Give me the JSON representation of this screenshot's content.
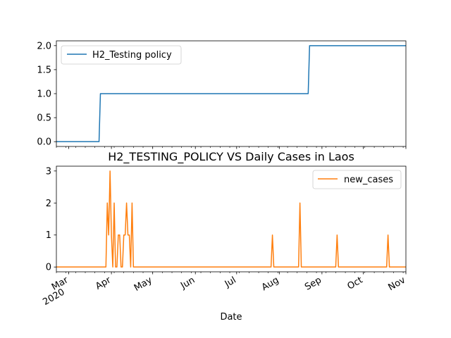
{
  "chart_data": [
    {
      "type": "line",
      "title": "",
      "xlabel": "",
      "ylabel": "",
      "ylim": [
        -0.1,
        2.1
      ],
      "yticks": [
        0.0,
        0.5,
        1.0,
        1.5,
        2.0
      ],
      "ytick_labels": [
        "0.0",
        "0.5",
        "1.0",
        "1.5",
        "2.0"
      ],
      "grid": false,
      "legend_position": "upper-left",
      "series": [
        {
          "name": "H2_Testing policy",
          "color": "#1f77b4",
          "points": [
            [
              "2020-02-21",
              0
            ],
            [
              "2020-03-23",
              0
            ],
            [
              "2020-03-24",
              1
            ],
            [
              "2020-08-22",
              1
            ],
            [
              "2020-08-23",
              2
            ],
            [
              "2020-11-01",
              2
            ]
          ]
        }
      ]
    },
    {
      "type": "line",
      "title": "H2_TESTING_POLICY VS Daily Cases in Laos",
      "xlabel": "Date",
      "ylabel": "",
      "ylim": [
        -0.15,
        3.15
      ],
      "yticks": [
        0,
        1,
        2,
        3
      ],
      "ytick_labels": [
        "0",
        "1",
        "2",
        "3"
      ],
      "grid": false,
      "legend_position": "upper-right",
      "xticks": [
        {
          "date": "2020-03-01",
          "label": "Mar",
          "sub": "2020"
        },
        {
          "date": "2020-04-01",
          "label": "Apr",
          "sub": ""
        },
        {
          "date": "2020-05-01",
          "label": "May",
          "sub": ""
        },
        {
          "date": "2020-06-01",
          "label": "Jun",
          "sub": ""
        },
        {
          "date": "2020-07-01",
          "label": "Jul",
          "sub": ""
        },
        {
          "date": "2020-08-01",
          "label": "Aug",
          "sub": ""
        },
        {
          "date": "2020-09-01",
          "label": "Sep",
          "sub": ""
        },
        {
          "date": "2020-10-01",
          "label": "Oct",
          "sub": ""
        },
        {
          "date": "2020-11-01",
          "label": "Nov",
          "sub": ""
        }
      ],
      "series": [
        {
          "name": "new_cases",
          "color": "#ff7f0e",
          "points": [
            [
              "2020-02-21",
              0
            ],
            [
              "2020-03-28",
              0
            ],
            [
              "2020-03-29",
              2
            ],
            [
              "2020-03-30",
              1
            ],
            [
              "2020-03-31",
              3
            ],
            [
              "2020-04-01",
              1
            ],
            [
              "2020-04-02",
              0
            ],
            [
              "2020-04-03",
              2
            ],
            [
              "2020-04-04",
              0
            ],
            [
              "2020-04-05",
              0
            ],
            [
              "2020-04-06",
              1
            ],
            [
              "2020-04-07",
              1
            ],
            [
              "2020-04-08",
              0
            ],
            [
              "2020-04-09",
              0
            ],
            [
              "2020-04-10",
              1
            ],
            [
              "2020-04-11",
              1
            ],
            [
              "2020-04-12",
              2
            ],
            [
              "2020-04-13",
              1
            ],
            [
              "2020-04-14",
              1
            ],
            [
              "2020-04-15",
              0
            ],
            [
              "2020-04-16",
              2
            ],
            [
              "2020-04-17",
              0
            ],
            [
              "2020-07-26",
              0
            ],
            [
              "2020-07-27",
              1
            ],
            [
              "2020-07-28",
              0
            ],
            [
              "2020-08-15",
              0
            ],
            [
              "2020-08-16",
              2
            ],
            [
              "2020-08-17",
              0
            ],
            [
              "2020-09-11",
              0
            ],
            [
              "2020-09-12",
              1
            ],
            [
              "2020-09-13",
              0
            ],
            [
              "2020-10-18",
              0
            ],
            [
              "2020-10-19",
              1
            ],
            [
              "2020-10-20",
              0
            ],
            [
              "2020-11-01",
              0
            ]
          ]
        }
      ]
    }
  ]
}
